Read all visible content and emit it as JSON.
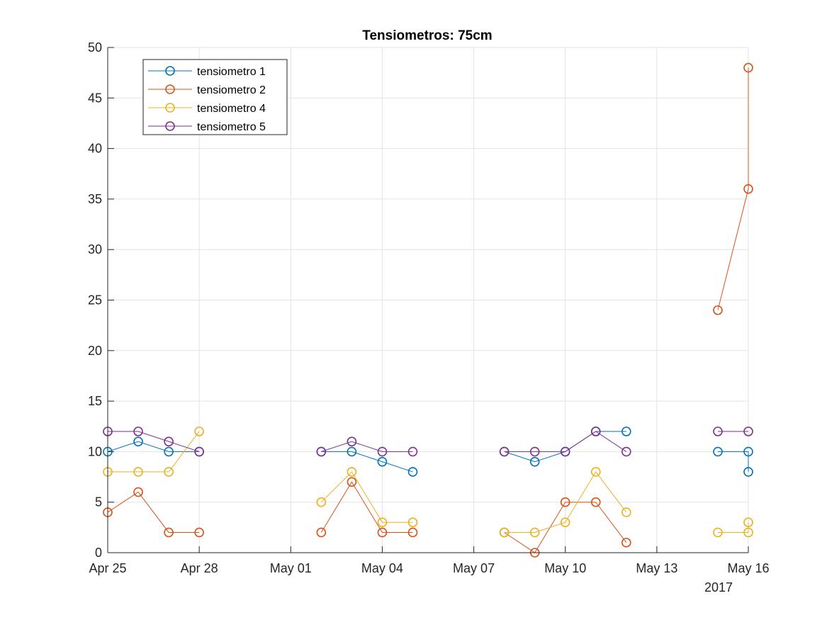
{
  "chart_data": {
    "type": "line",
    "title": "Tensiometros: 75cm",
    "xlabel": "",
    "ylabel": "",
    "x_axis_type": "date",
    "x_year_label": "2017",
    "xlim": [
      "2017-04-25",
      "2017-05-16"
    ],
    "ylim": [
      0,
      50
    ],
    "x_ticks": [
      {
        "date": "2017-04-25",
        "label": "Apr 25"
      },
      {
        "date": "2017-04-28",
        "label": "Apr 28"
      },
      {
        "date": "2017-05-01",
        "label": "May 01"
      },
      {
        "date": "2017-05-04",
        "label": "May 04"
      },
      {
        "date": "2017-05-07",
        "label": "May 07"
      },
      {
        "date": "2017-05-10",
        "label": "May 10"
      },
      {
        "date": "2017-05-13",
        "label": "May 13"
      },
      {
        "date": "2017-05-16",
        "label": "May 16"
      }
    ],
    "y_ticks": [
      0,
      5,
      10,
      15,
      20,
      25,
      30,
      35,
      40,
      45,
      50
    ],
    "grid": true,
    "legend_position": "top-left",
    "marker": "circle",
    "series": [
      {
        "name": "tensiometro 1",
        "color": "#0072BD",
        "segments": [
          [
            [
              "2017-04-25",
              10
            ],
            [
              "2017-04-26",
              11
            ],
            [
              "2017-04-27",
              10
            ],
            [
              "2017-04-28",
              10
            ]
          ],
          [
            [
              "2017-05-02",
              10
            ],
            [
              "2017-05-03",
              10
            ],
            [
              "2017-05-04",
              9
            ],
            [
              "2017-05-05",
              8
            ]
          ],
          [
            [
              "2017-05-08",
              10
            ],
            [
              "2017-05-09",
              9
            ],
            [
              "2017-05-10",
              10
            ],
            [
              "2017-05-11",
              12
            ],
            [
              "2017-05-12",
              12
            ]
          ],
          [
            [
              "2017-05-15",
              10
            ],
            [
              "2017-05-16",
              10
            ],
            [
              "2017-05-16",
              8
            ]
          ]
        ]
      },
      {
        "name": "tensiometro 2",
        "color": "#D95319",
        "segments": [
          [
            [
              "2017-04-25",
              4
            ],
            [
              "2017-04-26",
              6
            ],
            [
              "2017-04-27",
              2
            ],
            [
              "2017-04-28",
              2
            ]
          ],
          [
            [
              "2017-05-02",
              2
            ],
            [
              "2017-05-03",
              7
            ],
            [
              "2017-05-04",
              2
            ],
            [
              "2017-05-05",
              2
            ]
          ],
          [
            [
              "2017-05-08",
              2
            ],
            [
              "2017-05-09",
              0
            ],
            [
              "2017-05-10",
              5
            ],
            [
              "2017-05-11",
              5
            ],
            [
              "2017-05-12",
              1
            ]
          ],
          [
            [
              "2017-05-15",
              24
            ],
            [
              "2017-05-16",
              36
            ],
            [
              "2017-05-16",
              48
            ]
          ]
        ]
      },
      {
        "name": "tensiometro 4",
        "color": "#EDB120",
        "segments": [
          [
            [
              "2017-04-25",
              8
            ],
            [
              "2017-04-26",
              8
            ],
            [
              "2017-04-27",
              8
            ],
            [
              "2017-04-28",
              12
            ]
          ],
          [
            [
              "2017-05-02",
              5
            ],
            [
              "2017-05-03",
              8
            ],
            [
              "2017-05-04",
              3
            ],
            [
              "2017-05-05",
              3
            ]
          ],
          [
            [
              "2017-05-08",
              2
            ],
            [
              "2017-05-09",
              2
            ],
            [
              "2017-05-10",
              3
            ],
            [
              "2017-05-11",
              8
            ],
            [
              "2017-05-12",
              4
            ]
          ],
          [
            [
              "2017-05-15",
              2
            ],
            [
              "2017-05-16",
              2
            ],
            [
              "2017-05-16",
              3
            ]
          ]
        ]
      },
      {
        "name": "tensiometro 5",
        "color": "#7E2F8E",
        "segments": [
          [
            [
              "2017-04-25",
              12
            ],
            [
              "2017-04-26",
              12
            ],
            [
              "2017-04-27",
              11
            ],
            [
              "2017-04-28",
              10
            ]
          ],
          [
            [
              "2017-05-02",
              10
            ],
            [
              "2017-05-03",
              11
            ],
            [
              "2017-05-04",
              10
            ],
            [
              "2017-05-05",
              10
            ]
          ],
          [
            [
              "2017-05-08",
              10
            ],
            [
              "2017-05-09",
              10
            ],
            [
              "2017-05-10",
              10
            ],
            [
              "2017-05-11",
              12
            ],
            [
              "2017-05-12",
              10
            ]
          ],
          [
            [
              "2017-05-15",
              12
            ],
            [
              "2017-05-16",
              12
            ]
          ]
        ]
      }
    ]
  }
}
